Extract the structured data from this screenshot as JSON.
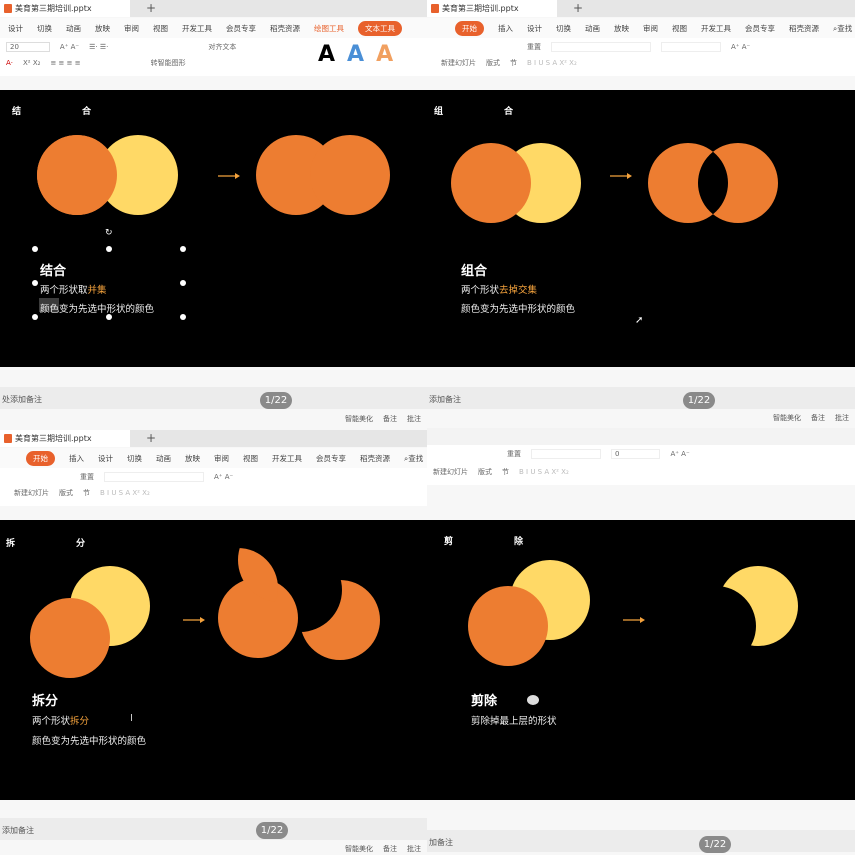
{
  "colors": {
    "orange": "#ED7D31",
    "yellow": "#FFD966",
    "accent": "#E8612C",
    "highlight": "#F4A23C"
  },
  "file_name": "美育第三期培训.pptx",
  "page_indicator": "1/22",
  "notes_placeholder_q1": "处添加备注",
  "notes_placeholder_q2": "添加备注",
  "notes_placeholder_q3": "添加备注",
  "notes_placeholder_q4": "加备注",
  "status": {
    "beautify": "智能美化",
    "notes": "备注",
    "comments": "批注"
  },
  "menu_q1": [
    "设计",
    "切换",
    "动画",
    "放映",
    "审阅",
    "视图",
    "开发工具",
    "会员专享",
    "稻壳资源"
  ],
  "menu_q1_extra": {
    "drawing_tools": "绘图工具",
    "text_tools": "文本工具"
  },
  "menu_full": [
    "开始",
    "插入",
    "设计",
    "切换",
    "动画",
    "放映",
    "审阅",
    "视图",
    "开发工具",
    "会员专享",
    "稻壳资源"
  ],
  "search": "查找",
  "toolbar": {
    "font_size": "20",
    "font_size_empty": "0",
    "align_text": "对齐文本",
    "smart_shape": "转智能图形",
    "new_slide": "新建幻灯片",
    "layout": "版式",
    "reset": "重置",
    "section": "节"
  },
  "slides": [
    {
      "heading": "结　合",
      "title": "结合",
      "line1_prefix": "两个形状取",
      "line1_highlight": "并集",
      "line2": "颜色变为先选中形状的颜色"
    },
    {
      "heading": "组　合",
      "title": "组合",
      "line1_prefix": "两个形状",
      "line1_highlight": "去掉交集",
      "line2": "颜色变为先选中形状的颜色"
    },
    {
      "heading": "拆　分",
      "title": "拆分",
      "line1_prefix": "两个形状",
      "line1_highlight": "拆分",
      "line2": "颜色变为先选中形状的颜色"
    },
    {
      "heading": "剪　除",
      "title": "剪除",
      "line1_prefix": "剪除掉最上层的形状",
      "line1_highlight": "",
      "line2": ""
    }
  ],
  "arrow": "→"
}
